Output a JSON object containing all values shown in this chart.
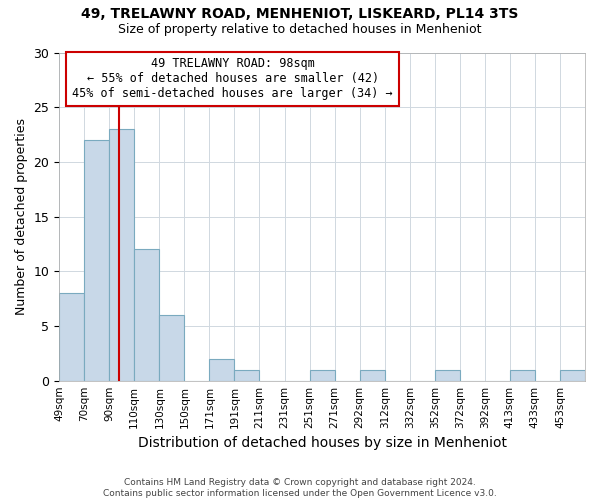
{
  "title": "49, TRELAWNY ROAD, MENHENIOT, LISKEARD, PL14 3TS",
  "subtitle": "Size of property relative to detached houses in Menheniot",
  "xlabel": "Distribution of detached houses by size in Menheniot",
  "ylabel": "Number of detached properties",
  "bar_color": "#c8d8e8",
  "bar_edge_color": "#7aaabf",
  "bin_labels": [
    "49sqm",
    "70sqm",
    "90sqm",
    "110sqm",
    "130sqm",
    "150sqm",
    "171sqm",
    "191sqm",
    "211sqm",
    "231sqm",
    "251sqm",
    "271sqm",
    "292sqm",
    "312sqm",
    "332sqm",
    "352sqm",
    "372sqm",
    "392sqm",
    "413sqm",
    "433sqm",
    "453sqm"
  ],
  "bin_values": [
    8,
    22,
    23,
    12,
    6,
    0,
    2,
    1,
    0,
    0,
    1,
    0,
    1,
    0,
    0,
    1,
    0,
    0,
    1,
    0,
    1
  ],
  "ylim": [
    0,
    30
  ],
  "yticks": [
    0,
    5,
    10,
    15,
    20,
    25,
    30
  ],
  "marker_label_line1": "49 TRELAWNY ROAD: 98sqm",
  "marker_label_line2": "← 55% of detached houses are smaller (42)",
  "marker_label_line3": "45% of semi-detached houses are larger (34) →",
  "marker_color": "#cc0000",
  "annotation_box_edge_color": "#cc0000",
  "footer_line1": "Contains HM Land Registry data © Crown copyright and database right 2024.",
  "footer_line2": "Contains public sector information licensed under the Open Government Licence v3.0.",
  "background_color": "#ffffff",
  "grid_color": "#d0d8e0"
}
